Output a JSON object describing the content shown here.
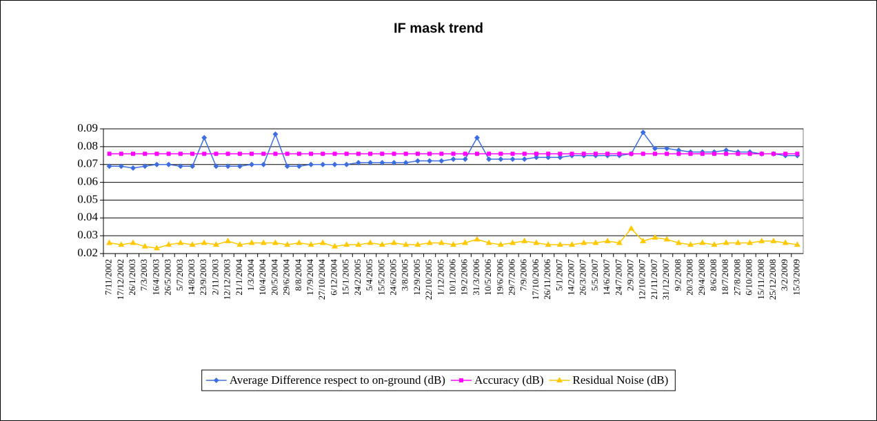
{
  "chart_data": {
    "type": "line",
    "title": "IF mask trend",
    "categories": [
      "7/11/2002",
      "17/12/2002",
      "26/1/2003",
      "7/3/2003",
      "16/4/2003",
      "26/5/2003",
      "5/7/2003",
      "14/8/2003",
      "23/9/2003",
      "2/11/2003",
      "12/12/2003",
      "21/1/2004",
      "1/3/2004",
      "10/4/2004",
      "20/5/2004",
      "29/6/2004",
      "8/8/2004",
      "17/9/2004",
      "27/10/2004",
      "6/12/2004",
      "15/1/2005",
      "24/2/2005",
      "5/4/2005",
      "15/5/2005",
      "24/6/2005",
      "3/8/2005",
      "12/9/2005",
      "22/10/2005",
      "1/12/2005",
      "10/1/2006",
      "19/2/2006",
      "31/3/2006",
      "10/5/2006",
      "19/6/2006",
      "29/7/2006",
      "7/9/2006",
      "17/10/2006",
      "26/11/2006",
      "5/1/2007",
      "14/2/2007",
      "26/3/2007",
      "5/5/2007",
      "14/6/2007",
      "24/7/2007",
      "2/9/2007",
      "12/10/2007",
      "21/11/2007",
      "31/12/2007",
      "9/2/2008",
      "20/3/2008",
      "29/4/2008",
      "8/6/2008",
      "18/7/2008",
      "27/8/2008",
      "6/10/2008",
      "15/11/2008",
      "25/12/2008",
      "3/2/2009",
      "15/3/2009"
    ],
    "series": [
      {
        "name": "Average Difference respect to on-ground (dB)",
        "color": "#3c6ee0",
        "marker": "diamond",
        "values": [
          0.069,
          0.069,
          0.068,
          0.069,
          0.07,
          0.07,
          0.069,
          0.069,
          0.085,
          0.069,
          0.069,
          0.069,
          0.07,
          0.07,
          0.087,
          0.069,
          0.069,
          0.07,
          0.07,
          0.07,
          0.07,
          0.071,
          0.071,
          0.071,
          0.071,
          0.071,
          0.072,
          0.072,
          0.072,
          0.073,
          0.073,
          0.085,
          0.073,
          0.073,
          0.073,
          0.073,
          0.074,
          0.074,
          0.074,
          0.075,
          0.075,
          0.075,
          0.075,
          0.075,
          0.076,
          0.088,
          0.079,
          0.079,
          0.078,
          0.077,
          0.077,
          0.077,
          0.078,
          0.077,
          0.077,
          0.076,
          0.076,
          0.075,
          0.075
        ]
      },
      {
        "name": "Accuracy (dB)",
        "color": "#ff00ff",
        "marker": "square",
        "values": [
          0.076,
          0.076,
          0.076,
          0.076,
          0.076,
          0.076,
          0.076,
          0.076,
          0.076,
          0.076,
          0.076,
          0.076,
          0.076,
          0.076,
          0.076,
          0.076,
          0.076,
          0.076,
          0.076,
          0.076,
          0.076,
          0.076,
          0.076,
          0.076,
          0.076,
          0.076,
          0.076,
          0.076,
          0.076,
          0.076,
          0.076,
          0.076,
          0.076,
          0.076,
          0.076,
          0.076,
          0.076,
          0.076,
          0.076,
          0.076,
          0.076,
          0.076,
          0.076,
          0.076,
          0.076,
          0.076,
          0.076,
          0.076,
          0.076,
          0.076,
          0.076,
          0.076,
          0.076,
          0.076,
          0.076,
          0.076,
          0.076,
          0.076,
          0.076
        ]
      },
      {
        "name": "Residual Noise (dB)",
        "color": "#ffc800",
        "marker": "triangle",
        "values": [
          0.026,
          0.025,
          0.026,
          0.024,
          0.023,
          0.025,
          0.026,
          0.025,
          0.026,
          0.025,
          0.027,
          0.025,
          0.026,
          0.026,
          0.026,
          0.025,
          0.026,
          0.025,
          0.026,
          0.024,
          0.025,
          0.025,
          0.026,
          0.025,
          0.026,
          0.025,
          0.025,
          0.026,
          0.026,
          0.025,
          0.026,
          0.028,
          0.026,
          0.025,
          0.026,
          0.027,
          0.026,
          0.025,
          0.025,
          0.025,
          0.026,
          0.026,
          0.027,
          0.026,
          0.034,
          0.027,
          0.029,
          0.028,
          0.026,
          0.025,
          0.026,
          0.025,
          0.026,
          0.026,
          0.026,
          0.027,
          0.027,
          0.026,
          0.025
        ]
      }
    ],
    "ylim": [
      0.02,
      0.09
    ],
    "yticks": [
      0.02,
      0.03,
      0.04,
      0.05,
      0.06,
      0.07,
      0.08,
      0.09
    ],
    "grid": true,
    "legend": "bottom"
  }
}
